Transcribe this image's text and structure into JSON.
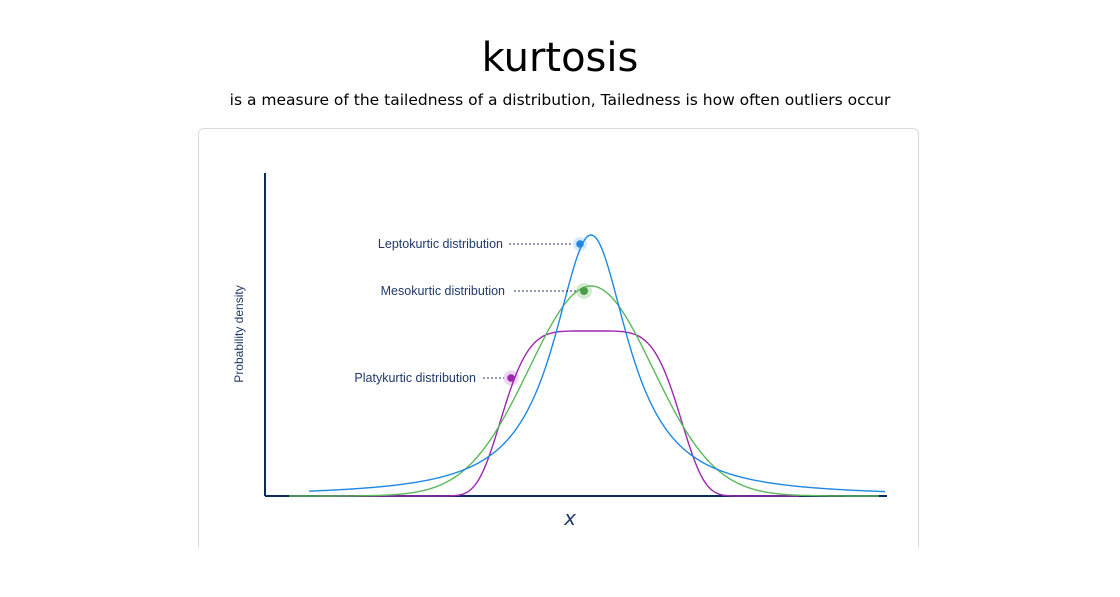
{
  "header": {
    "title": "kurtosis",
    "subtitle": "is a measure of the tailedness of a distribution, Tailedness is how often outliers occur"
  },
  "figure": {
    "y_axis_label": "Probability density",
    "x_axis_label": "x",
    "curves": [
      {
        "key": "leptokurtic",
        "label": "Leptokurtic distribution",
        "color": "#1e88e5"
      },
      {
        "key": "mesokurtic",
        "label": "Mesokurtic distribution",
        "color": "#5cb85c"
      },
      {
        "key": "platykurtic",
        "label": "Platykurtic distribution",
        "color": "#9c27b0"
      }
    ],
    "axis_color": "#0d2a5c",
    "label_color": "#1f3a6a"
  }
}
